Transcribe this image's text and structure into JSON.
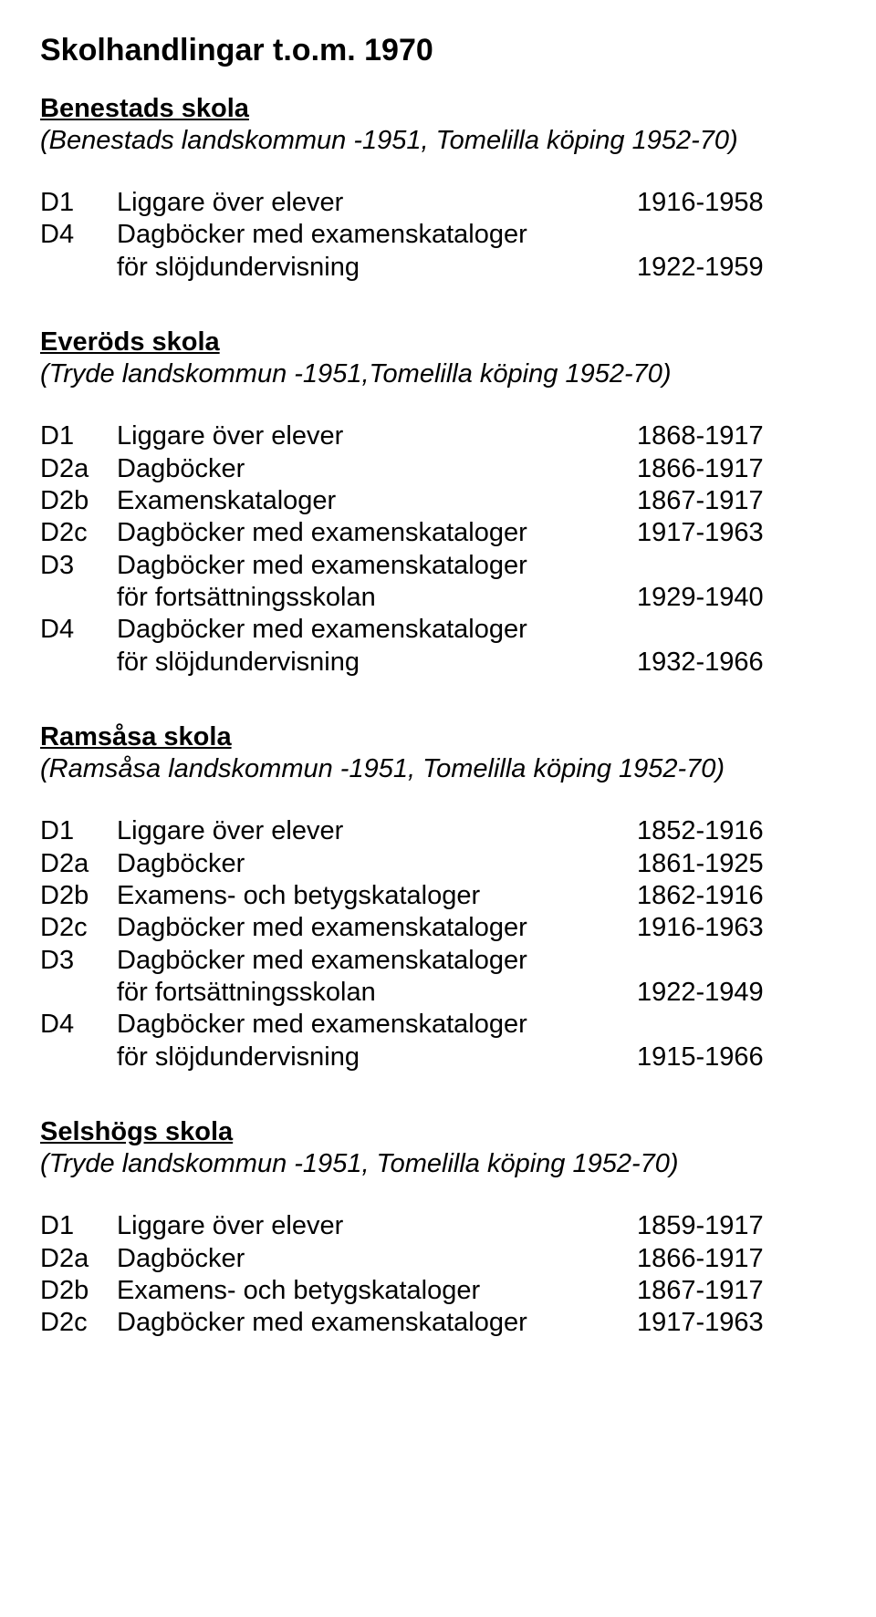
{
  "title": "Skolhandlingar t.o.m. 1970",
  "font_family": "Arial",
  "title_fontsize": 34,
  "body_fontsize": 29,
  "text_color": "#000000",
  "background_color": "#ffffff",
  "schools": [
    {
      "name": "Benestads skola",
      "sub": "(Benestads landskommun -1951, Tomelilla köping 1952-70)",
      "records": [
        {
          "code": "D1",
          "desc": "Liggare över elever",
          "years": "1916-1958"
        },
        {
          "code": "D4",
          "desc": "Dagböcker med examenskataloger",
          "years": ""
        },
        {
          "code": "",
          "desc": "för slöjdundervisning",
          "years": "1922-1959",
          "indent": true
        }
      ]
    },
    {
      "name": "Everöds skola",
      "sub": "(Tryde landskommun -1951,Tomelilla köping 1952-70)",
      "records": [
        {
          "code": "D1",
          "desc": "Liggare över elever",
          "years": "1868-1917"
        },
        {
          "code": "D2a",
          "desc": "Dagböcker",
          "years": "1866-1917"
        },
        {
          "code": "D2b",
          "desc": "Examenskataloger",
          "years": "1867-1917"
        },
        {
          "code": "D2c",
          "desc": "Dagböcker med examenskataloger",
          "years": "1917-1963"
        },
        {
          "code": "D3",
          "desc": "Dagböcker med examenskataloger",
          "years": ""
        },
        {
          "code": "",
          "desc": "för fortsättningsskolan",
          "years": "1929-1940",
          "indent": true
        },
        {
          "code": "D4",
          "desc": "Dagböcker med examenskataloger",
          "years": ""
        },
        {
          "code": "",
          "desc": "för slöjdundervisning",
          "years": "1932-1966",
          "indent": true
        }
      ]
    },
    {
      "name": "Ramsåsa skola",
      "sub": "(Ramsåsa landskommun -1951, Tomelilla köping 1952-70)",
      "records": [
        {
          "code": "D1",
          "desc": "Liggare över elever",
          "years": "1852-1916"
        },
        {
          "code": "D2a",
          "desc": "Dagböcker",
          "years": "1861-1925"
        },
        {
          "code": "D2b",
          "desc": "Examens- och betygskataloger",
          "years": "1862-1916"
        },
        {
          "code": "D2c",
          "desc": "Dagböcker med examenskataloger",
          "years": "1916-1963"
        },
        {
          "code": "D3",
          "desc": "Dagböcker med examenskataloger",
          "years": ""
        },
        {
          "code": "",
          "desc": "för fortsättningsskolan",
          "years": "1922-1949",
          "indent": true
        },
        {
          "code": "D4",
          "desc": "Dagböcker med examenskataloger",
          "years": ""
        },
        {
          "code": "",
          "desc": "för slöjdundervisning",
          "years": "1915-1966",
          "indent": true
        }
      ]
    },
    {
      "name": "Selshögs skola",
      "sub": "(Tryde landskommun -1951, Tomelilla köping 1952-70)",
      "records": [
        {
          "code": "D1",
          "desc": "Liggare över elever",
          "years": "1859-1917"
        },
        {
          "code": "D2a",
          "desc": "Dagböcker",
          "years": "1866-1917"
        },
        {
          "code": "D2b",
          "desc": "Examens- och betygskataloger",
          "years": "1867-1917"
        },
        {
          "code": "D2c",
          "desc": "Dagböcker med examenskataloger",
          "years": "1917-1963"
        }
      ]
    }
  ]
}
